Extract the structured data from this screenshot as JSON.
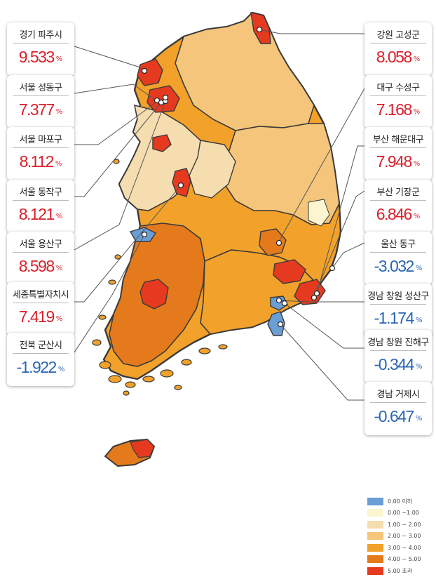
{
  "cards": [
    {
      "name": "경기 파주시",
      "value": "9.533",
      "unit": "%",
      "sign": "pos"
    },
    {
      "name": "서울 성동구",
      "value": "7.377",
      "unit": "%",
      "sign": "pos"
    },
    {
      "name": "서울 마포구",
      "value": "8.112",
      "unit": "%",
      "sign": "pos"
    },
    {
      "name": "서울 동작구",
      "value": "8.121",
      "unit": "%",
      "sign": "pos"
    },
    {
      "name": "서울 용산구",
      "value": "8.598",
      "unit": "%",
      "sign": "pos"
    },
    {
      "name": "세종특별자치시",
      "value": "7.419",
      "unit": "%",
      "sign": "pos"
    },
    {
      "name": "전북 군산시",
      "value": "-1.922",
      "unit": "%",
      "sign": "neg"
    },
    {
      "name": "강원 고성군",
      "value": "8.058",
      "unit": "%",
      "sign": "pos"
    },
    {
      "name": "대구 수성구",
      "value": "7.168",
      "unit": "%",
      "sign": "pos"
    },
    {
      "name": "부산 해운대구",
      "value": "7.948",
      "unit": "%",
      "sign": "pos"
    },
    {
      "name": "부산 기장군",
      "value": "6.846",
      "unit": "%",
      "sign": "pos"
    },
    {
      "name": "울산 동구",
      "value": "-3.032",
      "unit": "%",
      "sign": "neg"
    },
    {
      "name": "경남 창원 성산구",
      "value": "-1.174",
      "unit": "%",
      "sign": "neg"
    },
    {
      "name": "경남 창원 진해구",
      "value": "-0.344",
      "unit": "%",
      "sign": "neg"
    },
    {
      "name": "경남 거제시",
      "value": "-0.647",
      "unit": "%",
      "sign": "neg"
    }
  ],
  "legend": [
    {
      "label": "0.00 이하",
      "color": "#6a9fd6"
    },
    {
      "label": "0.00 ~1.00",
      "color": "#fbf6cf"
    },
    {
      "label": "1.00 ~ 2.00",
      "color": "#f6ddb0"
    },
    {
      "label": "2.00 ~ 3.00",
      "color": "#f4c57a"
    },
    {
      "label": "3.00 ~ 4.00",
      "color": "#f2a12a"
    },
    {
      "label": "4.00 ~ 5.00",
      "color": "#e47a1c"
    },
    {
      "label": "5.00 초과",
      "color": "#e53a1f"
    }
  ],
  "colors": {
    "positive": "#d9202b",
    "negative": "#2a64b3",
    "border": "#3a3a3a"
  }
}
